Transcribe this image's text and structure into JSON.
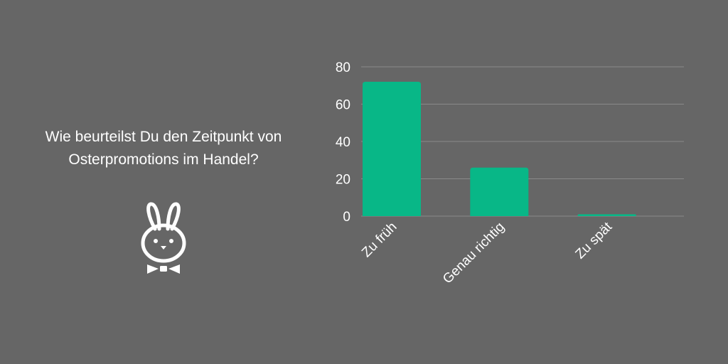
{
  "question": {
    "line1": "Wie beurteilst Du den Zeitpunkt von",
    "line2": "Osterpromotions im Handel?"
  },
  "icon": "bunny-with-bowtie-icon",
  "colors": {
    "background": "#666666",
    "bar": "#08b787",
    "gridline": "#8a8a8a",
    "text": "#ffffff"
  },
  "chart_data": {
    "type": "bar",
    "categories": [
      "Zu früh",
      "Genau richtig",
      "Zu spät"
    ],
    "values": [
      72,
      26,
      1
    ],
    "ylim": [
      0,
      80
    ],
    "yticks": [
      0,
      20,
      40,
      60,
      80
    ],
    "grid": true,
    "legend": "none"
  }
}
